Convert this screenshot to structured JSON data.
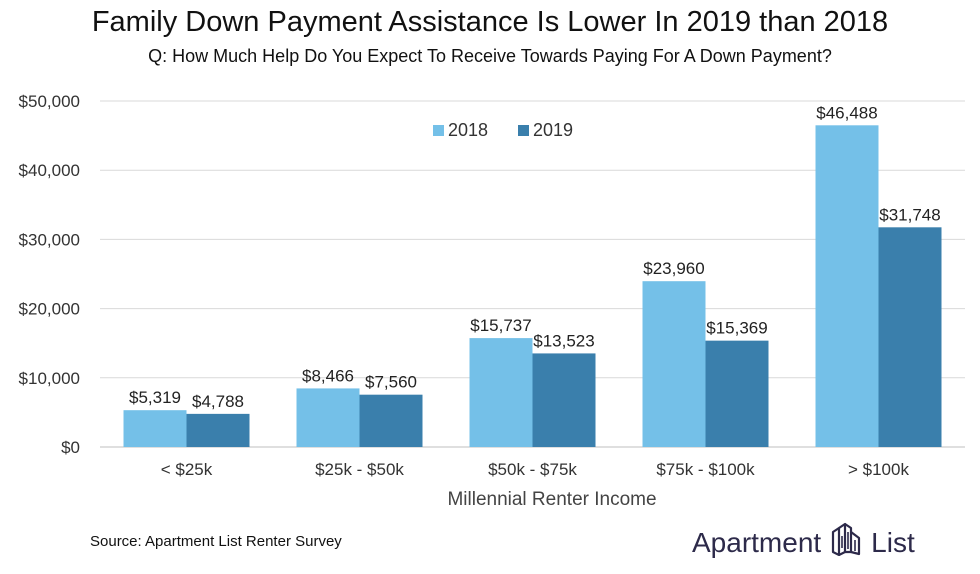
{
  "title": "Family Down Payment Assistance Is Lower In 2019 than 2018",
  "subtitle": "Q: How Much Help Do You Expect To Receive Towards Paying For A Down Payment?",
  "source": "Source: Apartment List  Renter Survey",
  "brand": {
    "left": "Apartment",
    "right": "List",
    "logo_icon": "apartment-list-logo-icon"
  },
  "colors": {
    "2018": "#74c0e8",
    "2019": "#3a7fac",
    "grid": "#d9d9d9",
    "brand": "#2d2a4a"
  },
  "chart_data": {
    "type": "bar",
    "categories": [
      "< $25k",
      "$25k - $50k",
      "$50k - $75k",
      "$75k - $100k",
      "> $100k"
    ],
    "series": [
      {
        "name": "2018",
        "values": [
          5319,
          8466,
          15737,
          23960,
          46488
        ],
        "labels": [
          "$5,319",
          "$8,466",
          "$15,737",
          "$23,960",
          "$46,488"
        ]
      },
      {
        "name": "2019",
        "values": [
          4788,
          7560,
          13523,
          15369,
          31748
        ],
        "labels": [
          "$4,788",
          "$7,560",
          "$13,523",
          "$15,369",
          "$31,748"
        ]
      }
    ],
    "xlabel": "Millennial Renter Income",
    "ylabel": "",
    "ylim": [
      0,
      50000
    ],
    "yticks": [
      0,
      10000,
      20000,
      30000,
      40000,
      50000
    ],
    "ytick_labels": [
      "$0",
      "$10,000",
      "$20,000",
      "$30,000",
      "$40,000",
      "$50,000"
    ],
    "grid": true,
    "legend": "top-center"
  }
}
